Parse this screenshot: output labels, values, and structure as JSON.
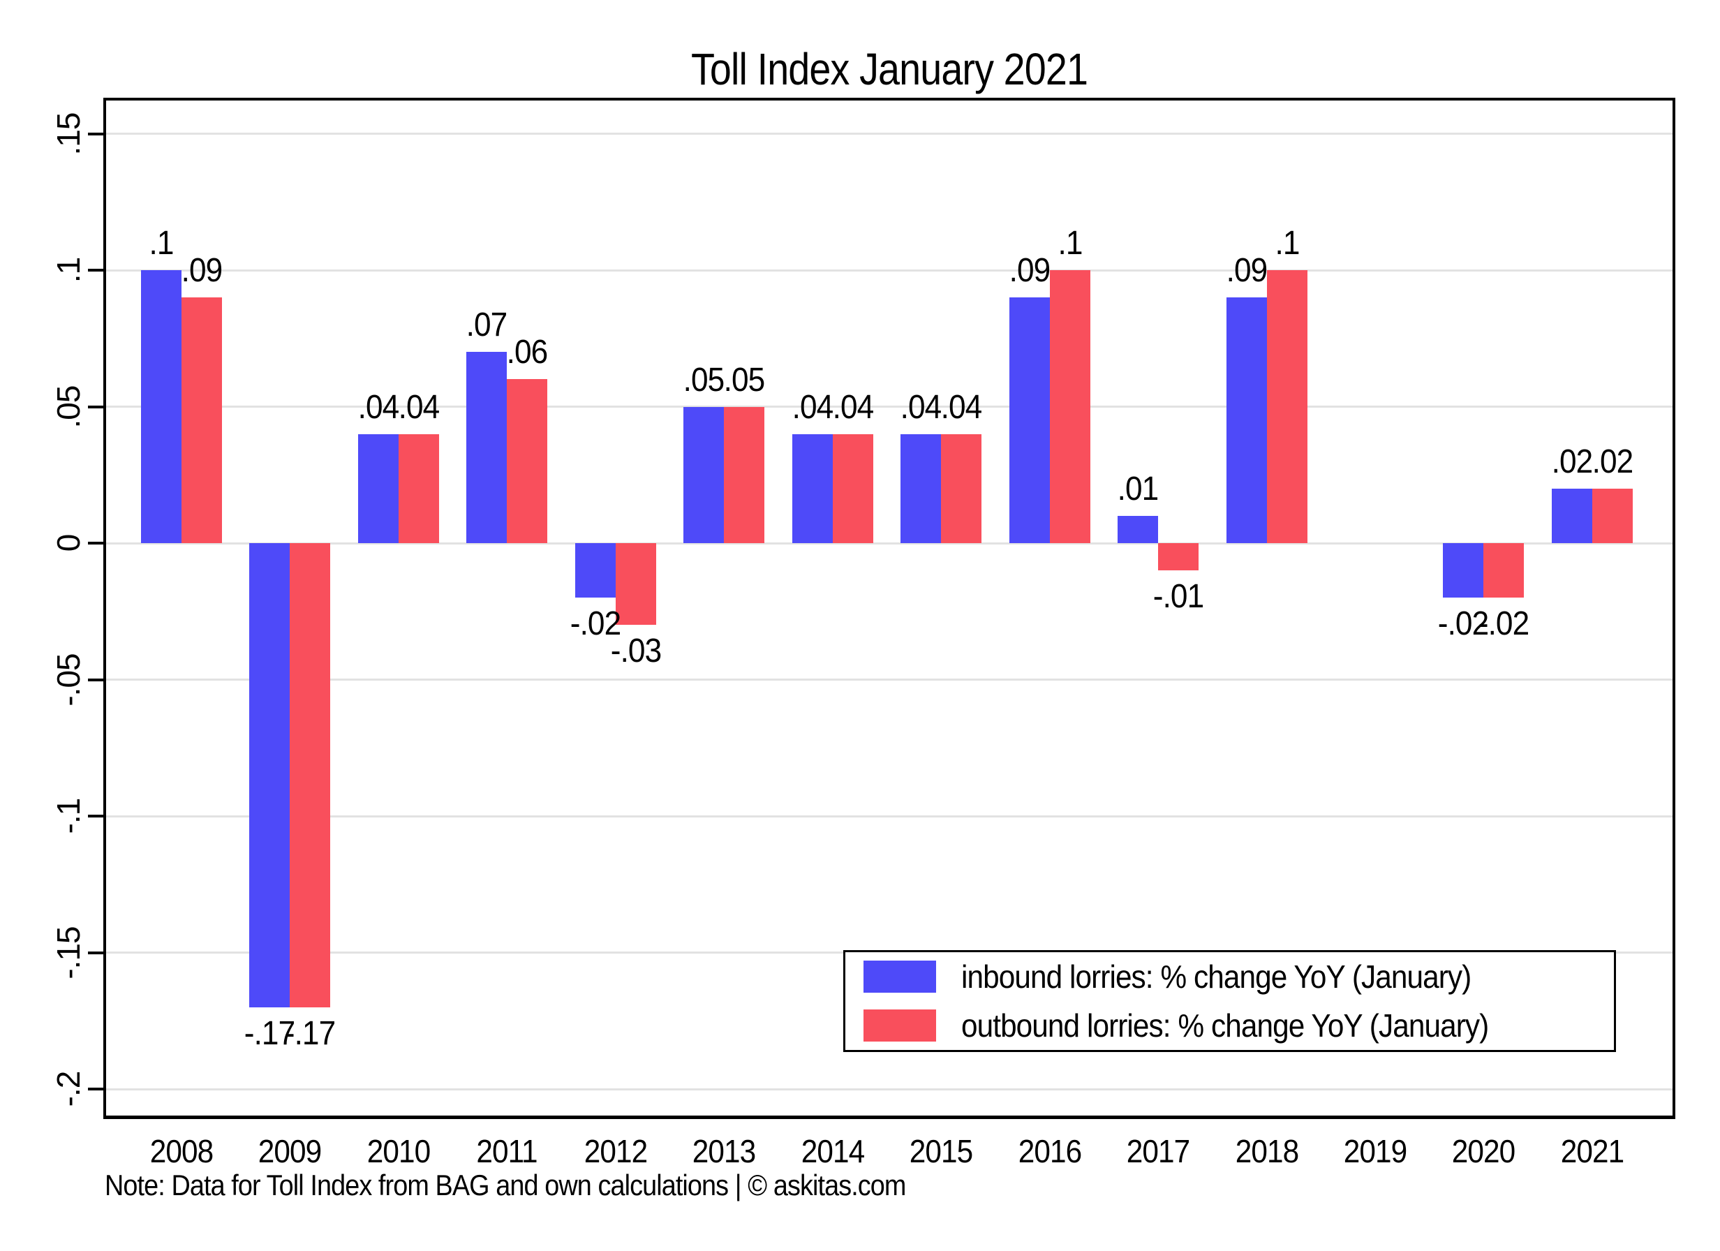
{
  "title": "Toll Index January 2021",
  "note": "Note: Data for Toll Index from BAG and own calculations | © askitas.com",
  "colors": {
    "inbound": "#4E4AF9",
    "outbound": "#F94F5C",
    "gridline": "#E2E2E2",
    "axis": "#000000",
    "background": "#FFFFFF"
  },
  "legend": {
    "items": [
      {
        "series": "inbound",
        "label": "inbound lorries: % change YoY (January)"
      },
      {
        "series": "outbound",
        "label": "outbound lorries: % change YoY (January)"
      }
    ]
  },
  "x_axis": {
    "labels": [
      "2008",
      "2009",
      "2010",
      "2011",
      "2012",
      "2013",
      "2014",
      "2015",
      "2016",
      "2017",
      "2018",
      "2019",
      "2020",
      "2021"
    ]
  },
  "y_axis": {
    "tick_values": [
      0.15,
      0.1,
      0.05,
      0,
      -0.05,
      -0.1,
      -0.15,
      -0.2
    ],
    "tick_labels": [
      ".15",
      ".1",
      ".05",
      "0",
      "-.05",
      "-.1",
      "-.15",
      "-.2"
    ]
  },
  "chart_data": {
    "type": "bar",
    "title": "Toll Index January 2021",
    "xlabel": "",
    "ylabel": "",
    "ylim": [
      -0.211,
      0.163
    ],
    "grid": true,
    "legend_position": "inside-bottom-right",
    "categories": [
      "2008",
      "2009",
      "2010",
      "2011",
      "2012",
      "2013",
      "2014",
      "2015",
      "2016",
      "2017",
      "2018",
      "2019",
      "2020",
      "2021"
    ],
    "series": [
      {
        "name": "inbound lorries: % change YoY (January)",
        "color": "#4E4AF9",
        "values": [
          0.1,
          -0.17,
          0.04,
          0.07,
          -0.02,
          0.05,
          0.04,
          0.04,
          0.09,
          0.01,
          0.09,
          null,
          -0.02,
          0.02
        ],
        "value_labels": [
          ".1",
          "-.17",
          ".04",
          ".07",
          "-.02",
          ".05",
          ".04",
          ".04",
          ".09",
          ".01",
          ".09",
          null,
          "-.02",
          ".02"
        ]
      },
      {
        "name": "outbound lorries: % change YoY (January)",
        "color": "#F94F5C",
        "values": [
          0.09,
          -0.17,
          0.04,
          0.06,
          -0.03,
          0.05,
          0.04,
          0.04,
          0.1,
          -0.01,
          0.1,
          null,
          -0.02,
          0.02
        ],
        "value_labels": [
          ".09",
          "-.17",
          ".04",
          ".06",
          "-.03",
          ".05",
          ".04",
          ".04",
          ".1",
          "-.01",
          ".1",
          null,
          "-.02",
          ".02"
        ]
      }
    ]
  }
}
